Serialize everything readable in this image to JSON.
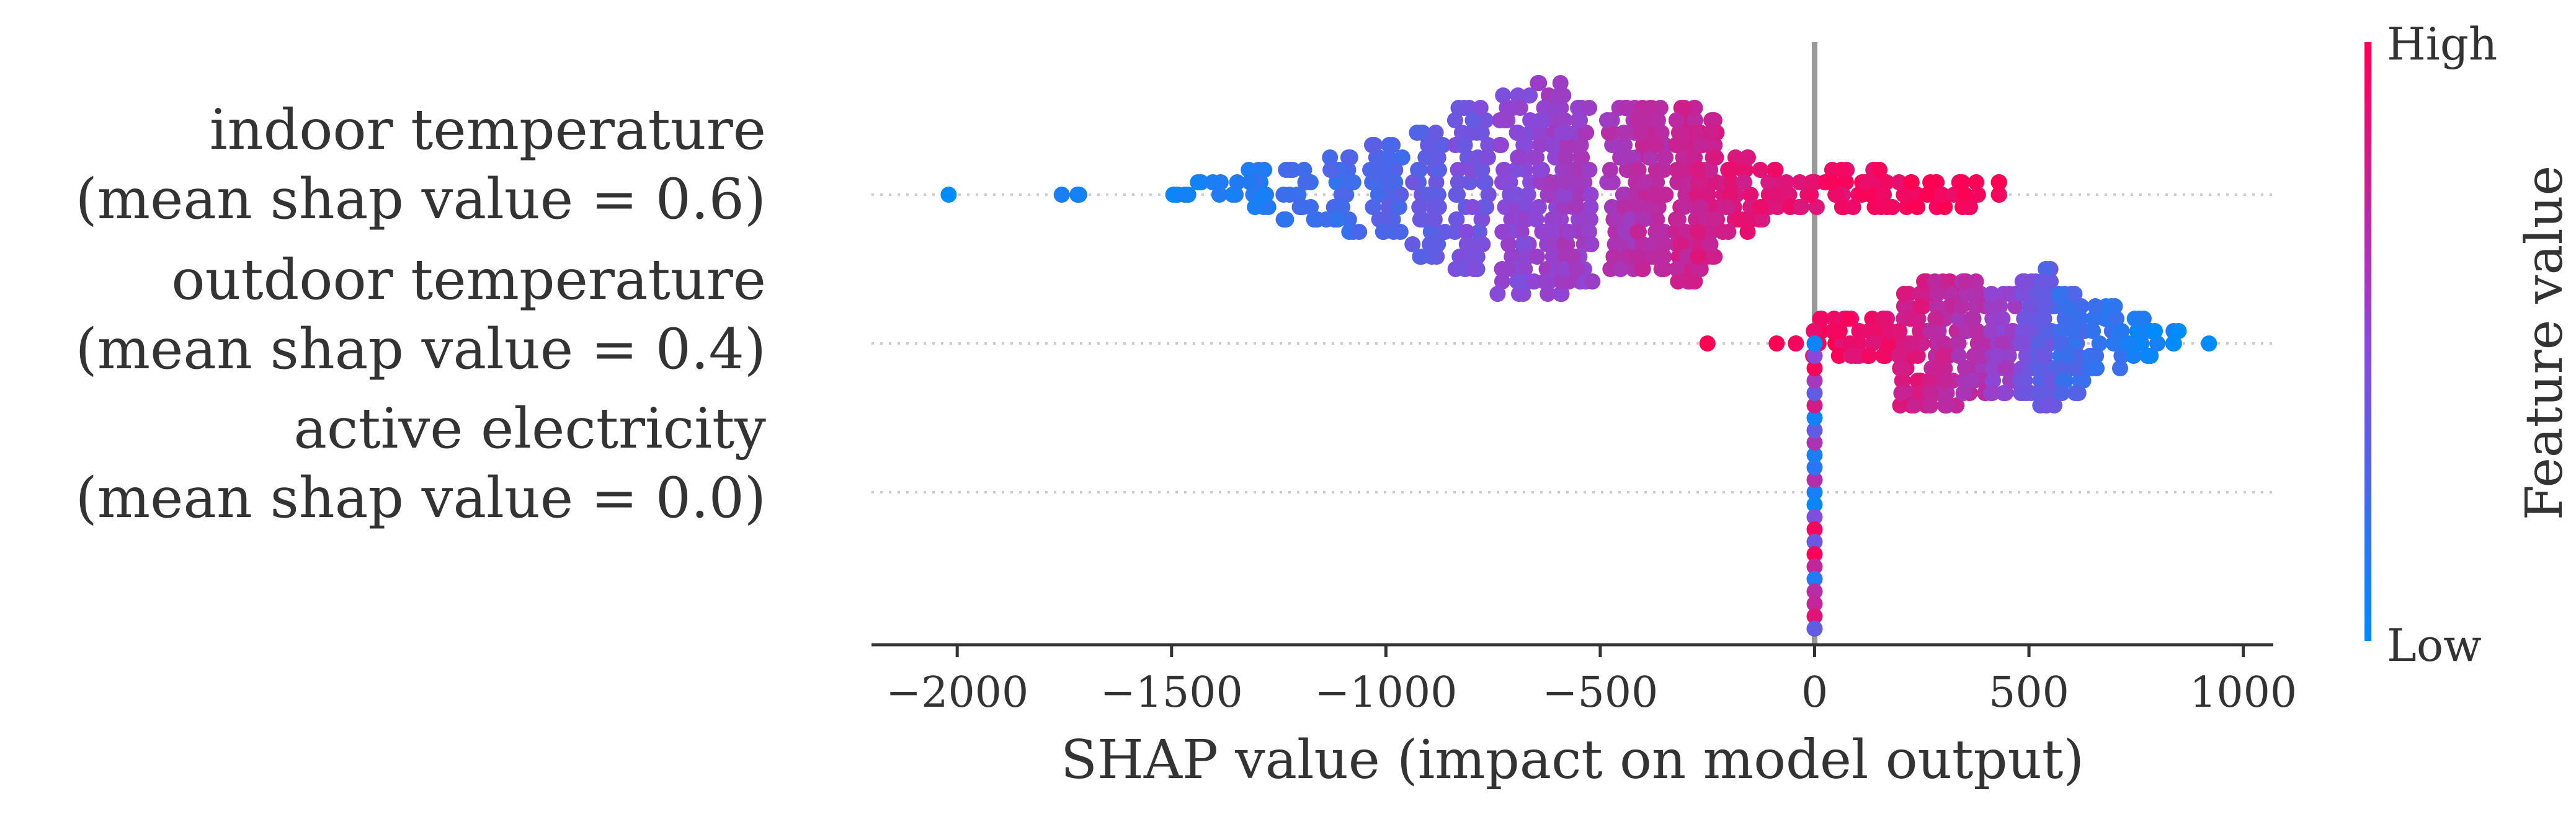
{
  "chart_data": {
    "type": "scatter",
    "subtype": "shap-beeswarm",
    "xlabel": "SHAP value (impact on model output)",
    "xlim": [
      -2200,
      1070
    ],
    "xticks": [
      -2000,
      -1500,
      -1000,
      -500,
      0,
      500,
      1000
    ],
    "xtick_labels": [
      "−2000",
      "−1500",
      "−1000",
      "−500",
      "0",
      "500",
      "1000"
    ],
    "zero_line": 0,
    "colorbar": {
      "title": "Feature value",
      "high_label": "High",
      "low_label": "Low",
      "high_color": "#ff0052",
      "mid_color": "#8b48d8",
      "low_color": "#008bfb"
    },
    "features": [
      {
        "name": "indoor temperature",
        "annotation": "(mean shap value = 0.6)",
        "shap_range": [
          -2020,
          440
        ],
        "distribution": [
          [
            -2020,
            1,
            0.02
          ],
          [
            -1730,
            3,
            0.05
          ],
          [
            -1500,
            4,
            0.07
          ],
          [
            -1450,
            5,
            0.08
          ],
          [
            -1380,
            6,
            0.12
          ],
          [
            -1300,
            14,
            0.15
          ],
          [
            -1200,
            20,
            0.2
          ],
          [
            -1100,
            26,
            0.24
          ],
          [
            -1000,
            32,
            0.28
          ],
          [
            -900,
            44,
            0.34
          ],
          [
            -800,
            56,
            0.42
          ],
          [
            -700,
            66,
            0.5
          ],
          [
            -620,
            70,
            0.55
          ],
          [
            -550,
            60,
            0.58
          ],
          [
            -450,
            56,
            0.64
          ],
          [
            -380,
            56,
            0.7
          ],
          [
            -300,
            60,
            0.76
          ],
          [
            -250,
            50,
            0.8
          ],
          [
            -180,
            26,
            0.84
          ],
          [
            -100,
            18,
            0.87
          ],
          [
            -30,
            12,
            0.9
          ],
          [
            50,
            14,
            0.92
          ],
          [
            120,
            14,
            0.94
          ],
          [
            200,
            12,
            0.95
          ],
          [
            280,
            10,
            0.96
          ],
          [
            360,
            10,
            0.97
          ],
          [
            430,
            6,
            0.98
          ]
        ]
      },
      {
        "name": "outdoor temperature",
        "annotation": "(mean shap value = 0.4)",
        "shap_range": [
          -250,
          920
        ],
        "distribution": [
          [
            -250,
            1,
            0.98
          ],
          [
            -80,
            3,
            0.97
          ],
          [
            20,
            14,
            0.95
          ],
          [
            80,
            16,
            0.92
          ],
          [
            150,
            16,
            0.88
          ],
          [
            230,
            44,
            0.82
          ],
          [
            300,
            44,
            0.74
          ],
          [
            370,
            40,
            0.66
          ],
          [
            440,
            36,
            0.56
          ],
          [
            500,
            40,
            0.44
          ],
          [
            540,
            46,
            0.34
          ],
          [
            600,
            36,
            0.24
          ],
          [
            680,
            24,
            0.16
          ],
          [
            760,
            14,
            0.08
          ],
          [
            820,
            6,
            0.05
          ],
          [
            920,
            1,
            0.02
          ]
        ]
      },
      {
        "name": "active electricity",
        "annotation": "(mean shap value = 0.0)",
        "shap_range": [
          0,
          0
        ],
        "distribution": [
          [
            0,
            24,
            0.5
          ]
        ]
      }
    ]
  }
}
